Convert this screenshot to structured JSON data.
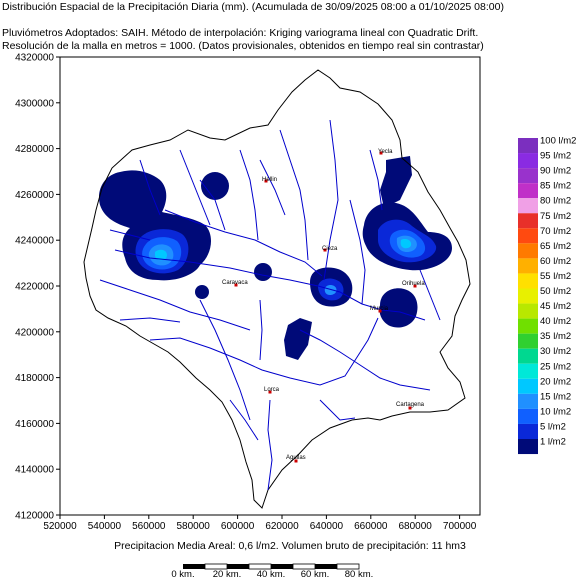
{
  "header": {
    "line1": "Distribución Espacial de la Precipitación Diaria (mm). (Acumulada de 30/09/2025 08:00 a 01/10/2025 08:00)",
    "line2": "Pluviómetros Adoptados: SAIH.   Método de interpolación: Kriging variograma lineal con Quadratic Drift.",
    "line3": "Resolución de la malla en metros = 1000. (Datos provisionales, obtenidos en tiempo real sin contrastar)"
  },
  "axes": {
    "y_ticks": [
      "4320000",
      "4300000",
      "4280000",
      "4260000",
      "4240000",
      "4220000",
      "4200000",
      "4180000",
      "4160000",
      "4140000",
      "4120000"
    ],
    "x_ticks": [
      "520000",
      "540000",
      "560000",
      "580000",
      "600000",
      "620000",
      "640000",
      "660000",
      "680000",
      "700000"
    ]
  },
  "places": [
    {
      "name": "Hellin"
    },
    {
      "name": "Yecla"
    },
    {
      "name": "Cieza"
    },
    {
      "name": "Caravaca"
    },
    {
      "name": "Orihuela"
    },
    {
      "name": "Murcia"
    },
    {
      "name": "Lorca"
    },
    {
      "name": "Cartagena"
    },
    {
      "name": "Aguilas"
    }
  ],
  "legend": [
    {
      "label": "100 l/m2",
      "color": "#7b2fbf"
    },
    {
      "label": "95 l/m2",
      "color": "#8a2be2"
    },
    {
      "label": "90 l/m2",
      "color": "#9932cc"
    },
    {
      "label": "85 l/m2",
      "color": "#c030c8"
    },
    {
      "label": "80 l/m2",
      "color": "#f0a0e6"
    },
    {
      "label": "75 l/m2",
      "color": "#e8302a"
    },
    {
      "label": "70 l/m2",
      "color": "#ff4a10"
    },
    {
      "label": "65 l/m2",
      "color": "#ff7a00"
    },
    {
      "label": "60 l/m2",
      "color": "#ffb000"
    },
    {
      "label": "55 l/m2",
      "color": "#ffe000"
    },
    {
      "label": "50 l/m2",
      "color": "#e8f000"
    },
    {
      "label": "45 l/m2",
      "color": "#b8e800"
    },
    {
      "label": "40 l/m2",
      "color": "#70e000"
    },
    {
      "label": "35 l/m2",
      "color": "#30d030"
    },
    {
      "label": "30 l/m2",
      "color": "#00d890"
    },
    {
      "label": "25 l/m2",
      "color": "#00e8d8"
    },
    {
      "label": "20 l/m2",
      "color": "#00c8ff"
    },
    {
      "label": "15 l/m2",
      "color": "#2090ff"
    },
    {
      "label": "10 l/m2",
      "color": "#1060ff"
    },
    {
      "label": "5 l/m2",
      "color": "#0a28d8"
    },
    {
      "label": "1 l/m2",
      "color": "#000a78"
    }
  ],
  "footer": "Precipitacion Media Areal: 0,6 l/m2. Volumen bruto de precipitación: 11 hm3",
  "scalebar": {
    "labels": [
      "0 km.",
      "20 km.",
      "40 km.",
      "60 km.",
      "80 km."
    ]
  },
  "colors": {
    "river": "#0000cc",
    "basin_outline": "#000000",
    "town_marker": "#cc0000"
  }
}
